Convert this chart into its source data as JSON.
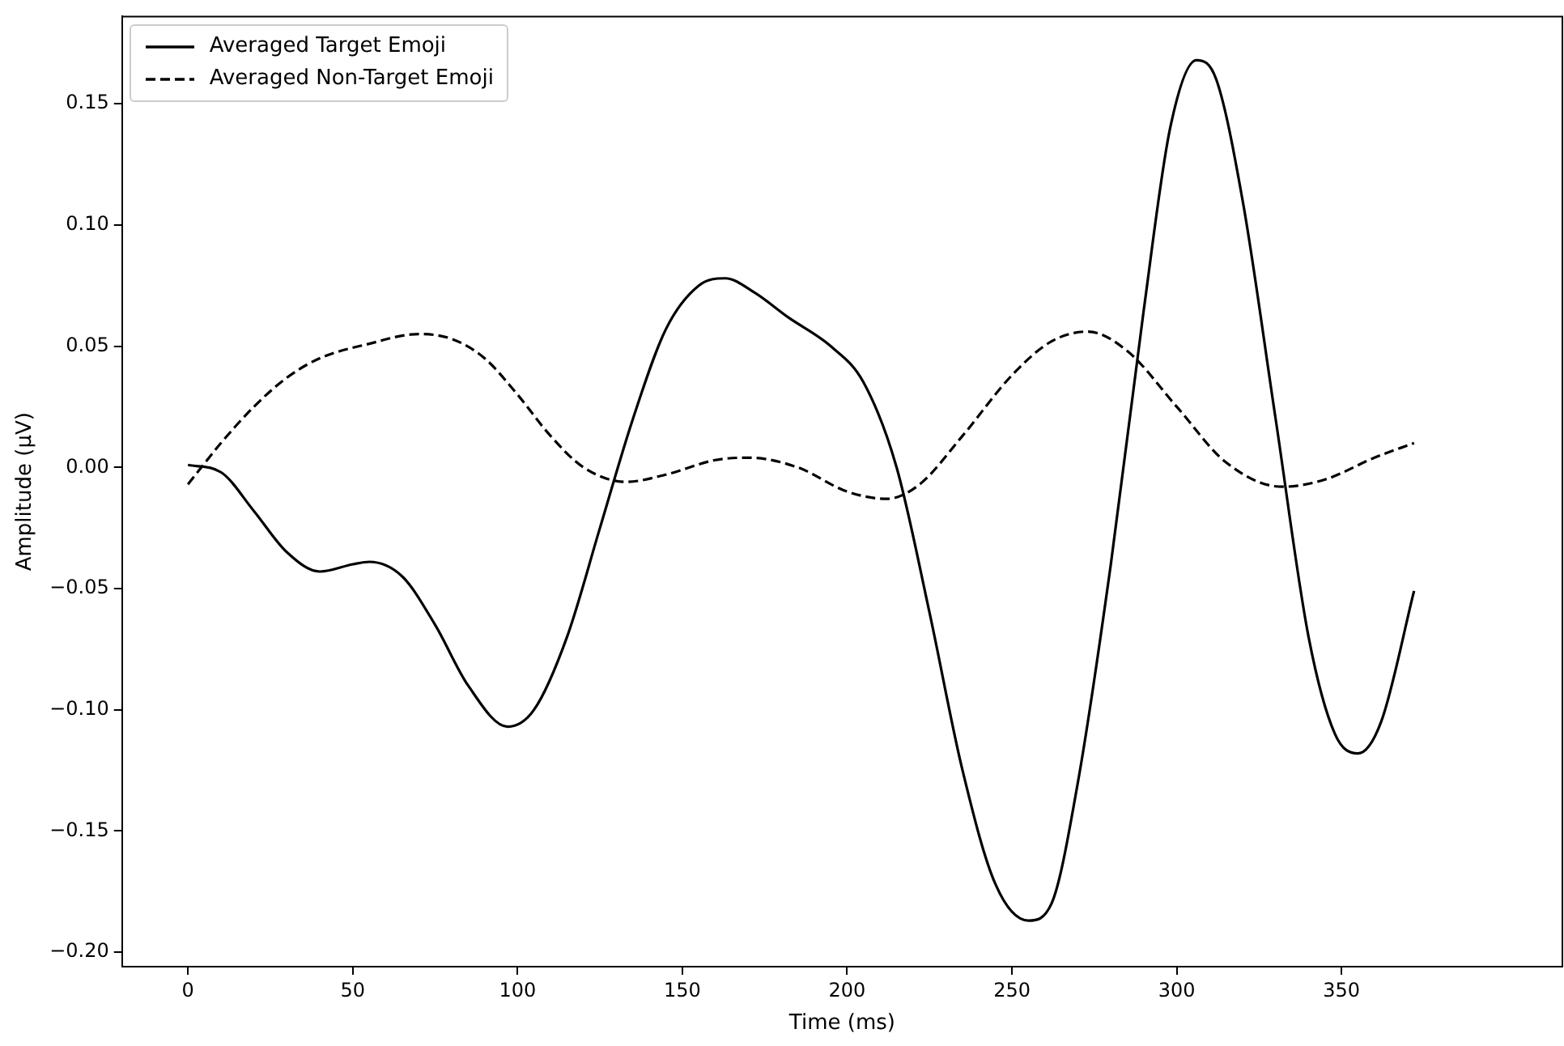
{
  "chart_data": {
    "type": "line",
    "xlabel": "Time (ms)",
    "ylabel": "Amplitude (µV)",
    "xlim": [
      -20,
      417
    ],
    "ylim": [
      -0.206,
      0.186
    ],
    "xticks": [
      0,
      50,
      100,
      150,
      200,
      250,
      300,
      350
    ],
    "yticks": [
      {
        "value": -0.2,
        "label": "−0.20"
      },
      {
        "value": -0.15,
        "label": "−0.15"
      },
      {
        "value": -0.1,
        "label": "−0.10"
      },
      {
        "value": -0.05,
        "label": "−0.05"
      },
      {
        "value": 0,
        "label": "0.00"
      },
      {
        "value": 0.05,
        "label": "0.05"
      },
      {
        "value": 0.1,
        "label": "0.10"
      },
      {
        "value": 0.15,
        "label": "0.15"
      }
    ],
    "grid": false,
    "legend": "top left",
    "marker": "none",
    "series": [
      {
        "name": "Averaged Target Emoji",
        "color": "#000000",
        "line_style": "solid",
        "x": [
          0,
          10,
          20,
          30,
          40,
          50,
          55,
          65,
          75,
          85,
          97,
          105,
          115,
          125,
          135,
          145,
          155,
          163,
          172,
          182,
          195,
          205,
          215,
          225,
          235,
          245,
          255,
          262,
          270,
          280,
          290,
          298,
          306,
          312,
          320,
          330,
          340,
          348,
          355,
          362,
          372
        ],
        "values": [
          0.001,
          -0.002,
          -0.018,
          -0.035,
          -0.043,
          -0.04,
          -0.039,
          -0.045,
          -0.065,
          -0.09,
          -0.107,
          -0.1,
          -0.07,
          -0.025,
          0.02,
          0.057,
          0.075,
          0.078,
          0.072,
          0.062,
          0.05,
          0.035,
          0,
          -0.06,
          -0.125,
          -0.172,
          -0.187,
          -0.18,
          -0.13,
          -0.04,
          0.065,
          0.14,
          0.168,
          0.16,
          0.11,
          0.02,
          -0.07,
          -0.11,
          -0.118,
          -0.105,
          -0.051
        ]
      },
      {
        "name": "Averaged Non-Target Emoji",
        "color": "#000000",
        "line_style": "dashed",
        "x": [
          0,
          10,
          20,
          30,
          40,
          55,
          70,
          80,
          90,
          100,
          110,
          120,
          133,
          145,
          160,
          170,
          185,
          200,
          212,
          222,
          235,
          250,
          262,
          273,
          285,
          300,
          315,
          332,
          345,
          360,
          372
        ],
        "values": [
          -0.007,
          0.01,
          0.025,
          0.037,
          0.045,
          0.051,
          0.055,
          0.053,
          0.045,
          0.03,
          0.013,
          0,
          -0.006,
          -0.003,
          0.003,
          0.004,
          0,
          -0.01,
          -0.013,
          -0.007,
          0.013,
          0.038,
          0.052,
          0.056,
          0.048,
          0.025,
          0.002,
          -0.008,
          -0.005,
          0.004,
          0.01
        ]
      }
    ]
  }
}
